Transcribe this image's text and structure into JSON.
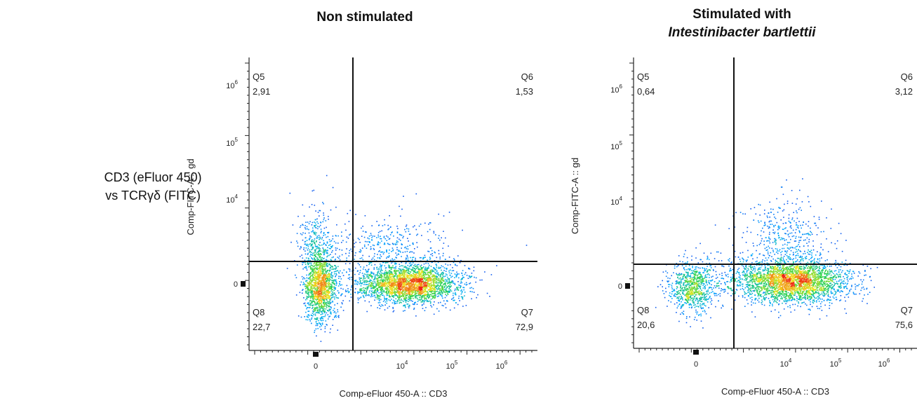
{
  "row_label": {
    "line1": "CD3 (eFluor 450)",
    "line2": "vs TCRγδ (FITC)"
  },
  "chart_data": [
    {
      "type": "scatter",
      "title_line1": "Non stimulated",
      "title_line2": "",
      "xlabel": "Comp-eFluor 450-A :: CD3",
      "ylabel": "Comp-FITC-A :: gd",
      "x_scale": "biexponential",
      "y_scale": "biexponential",
      "x_ticks": [
        {
          "base": "0",
          "exp": ""
        },
        {
          "base": "10",
          "exp": "4"
        },
        {
          "base": "10",
          "exp": "5"
        },
        {
          "base": "10",
          "exp": "6"
        }
      ],
      "y_ticks": [
        {
          "base": "0",
          "exp": ""
        },
        {
          "base": "10",
          "exp": "4"
        },
        {
          "base": "10",
          "exp": "5"
        },
        {
          "base": "10",
          "exp": "6"
        }
      ],
      "grid": false,
      "quadrants": [
        {
          "name": "Q5",
          "value": "2,91",
          "position": "top-left"
        },
        {
          "name": "Q6",
          "value": "1,53",
          "position": "top-right"
        },
        {
          "name": "Q8",
          "value": "22,7",
          "position": "bottom-left"
        },
        {
          "name": "Q7",
          "value": "72,9",
          "position": "bottom-right"
        }
      ],
      "colormap": "pseudocolor density (blue-green-yellow-red)"
    },
    {
      "type": "scatter",
      "title_line1": "Stimulated with",
      "title_line2": "Intestinibacter bartlettii",
      "xlabel": "Comp-eFluor 450-A :: CD3",
      "ylabel": "Comp-FITC-A :: gd",
      "x_scale": "biexponential",
      "y_scale": "biexponential",
      "x_ticks": [
        {
          "base": "0",
          "exp": ""
        },
        {
          "base": "10",
          "exp": "4"
        },
        {
          "base": "10",
          "exp": "5"
        },
        {
          "base": "10",
          "exp": "6"
        }
      ],
      "y_ticks": [
        {
          "base": "0",
          "exp": ""
        },
        {
          "base": "10",
          "exp": "4"
        },
        {
          "base": "10",
          "exp": "5"
        },
        {
          "base": "10",
          "exp": "6"
        }
      ],
      "grid": false,
      "quadrants": [
        {
          "name": "Q5",
          "value": "0,64",
          "position": "top-left"
        },
        {
          "name": "Q6",
          "value": "3,12",
          "position": "top-right"
        },
        {
          "name": "Q8",
          "value": "20,6",
          "position": "bottom-left"
        },
        {
          "name": "Q7",
          "value": "75,6",
          "position": "bottom-right"
        }
      ],
      "colormap": "pseudocolor density (blue-green-yellow-red)"
    }
  ]
}
